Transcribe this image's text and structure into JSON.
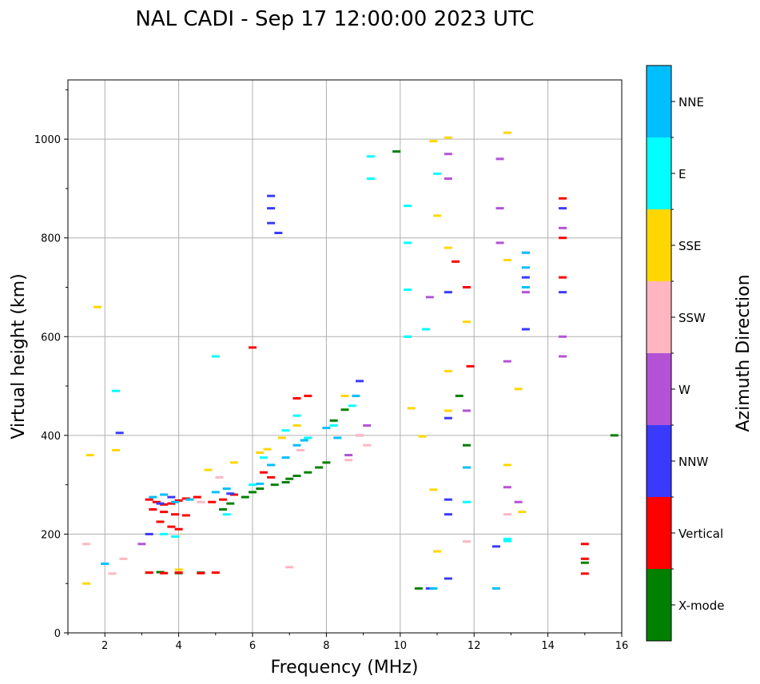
{
  "chart_data": {
    "type": "scatter",
    "title": "NAL CADI - Sep 17 12:00:00 2023 UTC",
    "xlabel": "Frequency (MHz)",
    "ylabel": "Virtual height (km)",
    "xlim": [
      1,
      16
    ],
    "ylim": [
      0,
      1120
    ],
    "xticks": [
      2,
      4,
      6,
      8,
      10,
      12,
      14,
      16
    ],
    "yticks": [
      0,
      200,
      400,
      600,
      800,
      1000
    ],
    "grid": true,
    "colorbar": {
      "label": "Azimuth Direction",
      "categories": [
        {
          "name": "X-mode",
          "color": "#008000"
        },
        {
          "name": "Vertical",
          "color": "#ff0000"
        },
        {
          "name": "NNW",
          "color": "#3a3aff"
        },
        {
          "name": "W",
          "color": "#b452d6"
        },
        {
          "name": "SSW",
          "color": "#ffb6c1"
        },
        {
          "name": "SSE",
          "color": "#ffd700"
        },
        {
          "name": "E",
          "color": "#00ffff"
        },
        {
          "name": "NNE",
          "color": "#00bfff"
        }
      ]
    },
    "series": [
      {
        "name": "X-mode",
        "x": [
          3.2,
          3.5,
          4.0,
          4.6,
          5.2,
          5.4,
          5.8,
          6.0,
          6.2,
          6.6,
          6.9,
          7.0,
          7.2,
          7.5,
          7.8,
          8.0,
          8.2,
          8.5,
          9.9,
          10.5,
          11.6,
          11.8,
          15.0,
          15.8
        ],
        "y": [
          122,
          123,
          121,
          122,
          250,
          262,
          275,
          285,
          292,
          300,
          305,
          312,
          318,
          325,
          335,
          345,
          430,
          452,
          975,
          90,
          480,
          380,
          142,
          400
        ]
      },
      {
        "name": "Vertical",
        "x": [
          3.2,
          3.4,
          3.6,
          3.8,
          4.0,
          4.2,
          4.5,
          3.3,
          3.6,
          3.9,
          4.2,
          3.5,
          3.8,
          4.0,
          4.9,
          5.2,
          5.5,
          3.2,
          3.6,
          4.0,
          4.6,
          5.0,
          6.0,
          6.3,
          6.5,
          7.2,
          7.5,
          11.5,
          11.8,
          11.9,
          14.4,
          14.4,
          14.4,
          15.0,
          15.0,
          15.0
        ],
        "y": [
          270,
          265,
          260,
          262,
          268,
          272,
          275,
          250,
          245,
          240,
          238,
          225,
          215,
          210,
          265,
          270,
          280,
          122,
          121,
          122,
          121,
          122,
          578,
          325,
          315,
          475,
          480,
          752,
          700,
          540,
          880,
          800,
          720,
          180,
          150,
          120
        ]
      },
      {
        "name": "NNW",
        "x": [
          2.4,
          3.2,
          3.5,
          3.8,
          5.4,
          6.5,
          6.5,
          6.5,
          6.7,
          8.9,
          10.8,
          11.3,
          11.3,
          11.3,
          11.3,
          11.3,
          12.6,
          13.4,
          13.4,
          14.4,
          14.4
        ],
        "y": [
          405,
          200,
          262,
          275,
          282,
          885,
          860,
          830,
          810,
          510,
          90,
          110,
          240,
          270,
          435,
          690,
          175,
          720,
          615,
          860,
          690
        ]
      },
      {
        "name": "W",
        "x": [
          3.0,
          8.6,
          8.9,
          9.1,
          10.8,
          11.3,
          11.3,
          11.8,
          12.7,
          12.7,
          12.7,
          12.9,
          13.4,
          13.4,
          14.4,
          14.4,
          14.4,
          12.9,
          13.2
        ],
        "y": [
          180,
          360,
          400,
          420,
          680,
          970,
          920,
          450,
          960,
          860,
          790,
          550,
          770,
          690,
          820,
          600,
          560,
          295,
          265
        ]
      },
      {
        "name": "SSW",
        "x": [
          1.5,
          2.2,
          2.5,
          4.6,
          5.1,
          7.0,
          7.3,
          8.6,
          8.9,
          9.1,
          11.8,
          12.9
        ],
        "y": [
          180,
          120,
          150,
          265,
          315,
          133,
          370,
          350,
          400,
          380,
          185,
          240
        ]
      },
      {
        "name": "SSE",
        "x": [
          1.5,
          1.6,
          1.8,
          2.3,
          4.0,
          4.8,
          5.5,
          6.2,
          6.4,
          6.8,
          7.2,
          8.5,
          10.3,
          10.6,
          10.9,
          11.0,
          11.3,
          11.3,
          11.3,
          11.8,
          12.9,
          12.9,
          13.2,
          13.3,
          10.9,
          11.0,
          11.3,
          12.9
        ],
        "y": [
          100,
          360,
          660,
          370,
          128,
          330,
          345,
          365,
          372,
          395,
          420,
          480,
          455,
          398,
          290,
          165,
          530,
          450,
          1003,
          630,
          1013,
          340,
          494,
          245,
          996,
          845,
          780,
          755
        ]
      },
      {
        "name": "E",
        "x": [
          2.3,
          3.6,
          3.9,
          5.0,
          5.3,
          6.0,
          6.3,
          6.9,
          7.2,
          7.5,
          8.2,
          8.7,
          9.2,
          9.2,
          10.2,
          10.2,
          10.2,
          10.2,
          10.7,
          11.0,
          11.8,
          12.9,
          12.9
        ],
        "y": [
          490,
          200,
          195,
          560,
          240,
          300,
          355,
          410,
          440,
          395,
          420,
          460,
          965,
          920,
          865,
          790,
          695,
          600,
          615,
          930,
          265,
          190,
          186
        ]
      },
      {
        "name": "NNE",
        "x": [
          2.0,
          3.3,
          3.6,
          3.9,
          4.3,
          5.0,
          5.3,
          6.2,
          6.5,
          6.9,
          7.2,
          7.4,
          8.0,
          8.3,
          8.8,
          13.4,
          13.4,
          13.4,
          11.8,
          12.6,
          10.9
        ],
        "y": [
          140,
          275,
          280,
          265,
          270,
          285,
          292,
          302,
          340,
          355,
          380,
          390,
          415,
          395,
          480,
          770,
          740,
          700,
          335,
          90,
          90
        ]
      }
    ]
  }
}
